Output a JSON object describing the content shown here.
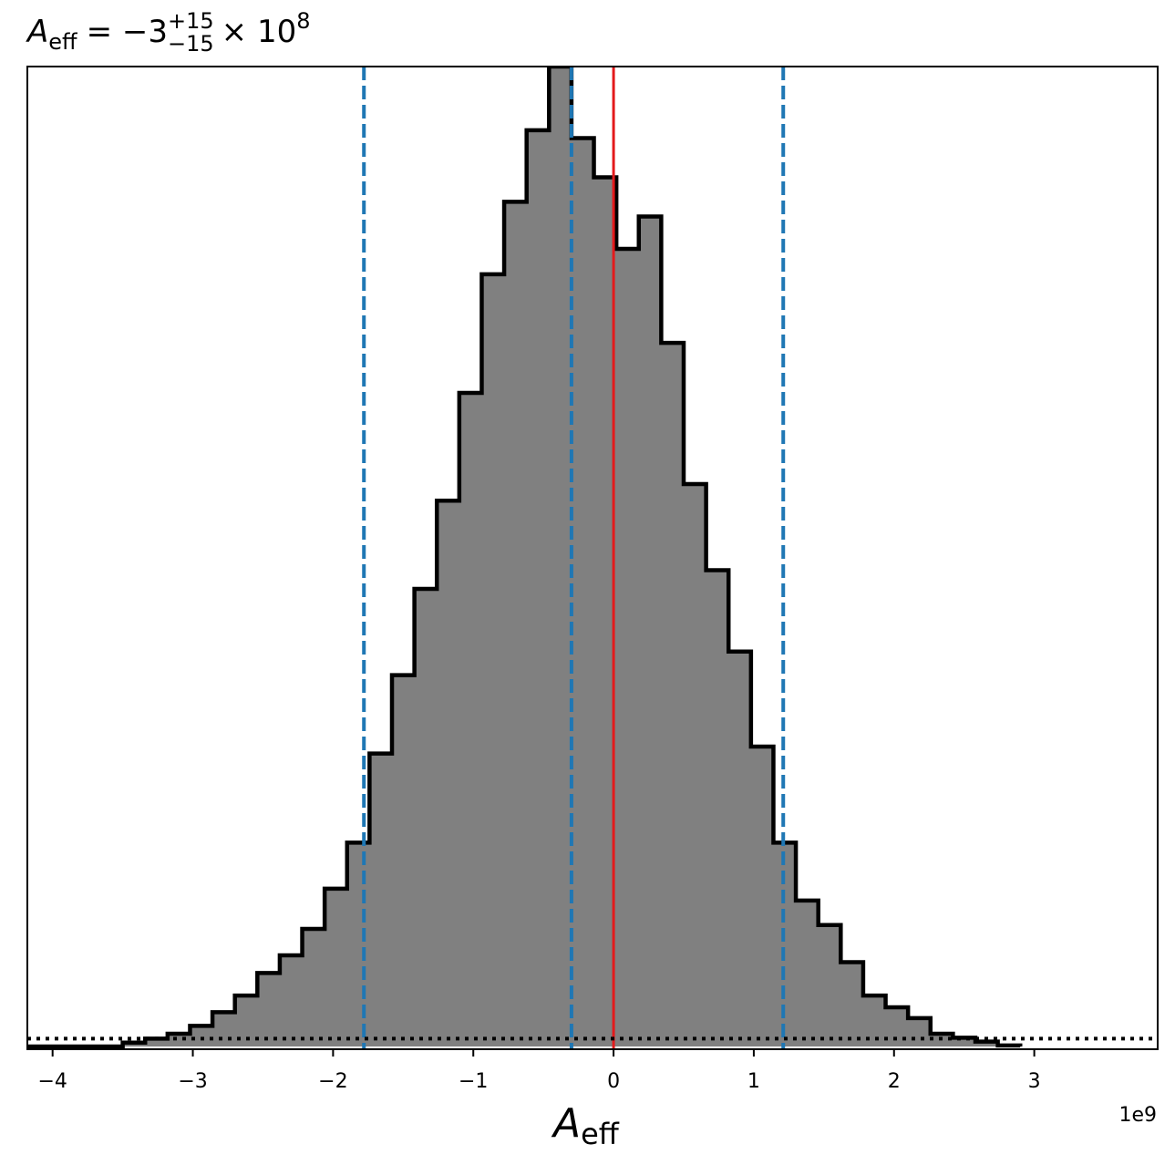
{
  "chart_data": {
    "type": "histogram",
    "title": {
      "var": "A",
      "var_sub": "eff",
      "relation": "= −3",
      "sup": "+15",
      "sub": "−15",
      "times": "× 10",
      "exp": "8"
    },
    "xlabel": {
      "var": "A",
      "sub": "eff"
    },
    "x_offset_text": "1e9",
    "xlim": [
      -4.18,
      3.88
    ],
    "ylim": [
      0,
      1.0
    ],
    "x_unit_scale": 1000000000,
    "xticks": [
      {
        "value": -4,
        "label": "−4"
      },
      {
        "value": -3,
        "label": "−3"
      },
      {
        "value": -2,
        "label": "−2"
      },
      {
        "value": -1,
        "label": "−1"
      },
      {
        "value": 0,
        "label": "0"
      },
      {
        "value": 1,
        "label": "1"
      },
      {
        "value": 2,
        "label": "2"
      },
      {
        "value": 3,
        "label": "3"
      }
    ],
    "yticks_shown": false,
    "bin_edges": [
      -4.18,
      -3.5,
      -3.34,
      -3.18,
      -3.02,
      -2.86,
      -2.7,
      -2.54,
      -2.38,
      -2.22,
      -2.06,
      -1.9,
      -1.74,
      -1.58,
      -1.42,
      -1.26,
      -1.1,
      -0.94,
      -0.78,
      -0.62,
      -0.46,
      -0.3,
      -0.14,
      0.02,
      0.18,
      0.34,
      0.5,
      0.66,
      0.82,
      0.98,
      1.14,
      1.3,
      1.46,
      1.62,
      1.78,
      1.94,
      2.1,
      2.26,
      2.42,
      2.58,
      2.74,
      2.9
    ],
    "counts": [
      0.0,
      0.004,
      0.008,
      0.013,
      0.021,
      0.035,
      0.052,
      0.075,
      0.093,
      0.12,
      0.161,
      0.208,
      0.299,
      0.379,
      0.467,
      0.557,
      0.667,
      0.788,
      0.862,
      0.935,
      1.0,
      0.927,
      0.887,
      0.814,
      0.847,
      0.718,
      0.574,
      0.486,
      0.403,
      0.306,
      0.208,
      0.149,
      0.124,
      0.086,
      0.052,
      0.04,
      0.029,
      0.013,
      0.009,
      0.005,
      0.001
    ],
    "fill_color": "#808080",
    "edge_color": "#000000",
    "vlines": [
      {
        "x": -1.78,
        "color": "#1f77b4",
        "style": "dashed"
      },
      {
        "x": -0.3,
        "color": "#1f77b4",
        "style": "dashed"
      },
      {
        "x": 1.21,
        "color": "#1f77b4",
        "style": "dashed"
      },
      {
        "x": 0.0,
        "color": "#e31a1c",
        "style": "solid"
      }
    ],
    "hline": {
      "y": 0.008,
      "color": "#000000",
      "style": "dotted"
    },
    "grid": false
  }
}
